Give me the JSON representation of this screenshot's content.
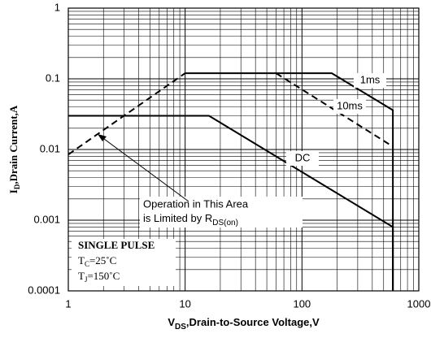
{
  "chart_data": {
    "type": "line",
    "xlabel": {
      "main": "V",
      "sub": "DS",
      "rest": ",Drain-to-Source Voltage,V"
    },
    "ylabel": {
      "main": "I",
      "sub": "D",
      "rest": ",Drain Current,A"
    },
    "xlog": true,
    "ylog": true,
    "grid": true,
    "minor_grid": true,
    "xlim": [
      1,
      1000
    ],
    "ylim": [
      0.0001,
      1
    ],
    "xticks": [
      1,
      10,
      100,
      1000
    ],
    "yticks": [
      0.0001,
      0.001,
      0.01,
      0.1,
      1
    ],
    "series": [
      {
        "color": "#000000",
        "dashed": true,
        "x": [
          1,
          10
        ],
        "values": [
          0.0085,
          0.12
        ]
      },
      {
        "name": "1ms",
        "color": "#000000",
        "dashed": false,
        "x": [
          10,
          180,
          600,
          600
        ],
        "values": [
          0.12,
          0.12,
          0.036,
          0.0001
        ]
      },
      {
        "name": "10ms",
        "color": "#000000",
        "dashed": true,
        "x": [
          60,
          600
        ],
        "values": [
          0.12,
          0.011
        ]
      },
      {
        "name": "DC",
        "color": "#000000",
        "dashed": false,
        "x": [
          1,
          16,
          600,
          600
        ],
        "values": [
          0.03,
          0.03,
          0.0008,
          0.0001
        ]
      }
    ],
    "annotation": {
      "line1": "Operation in This Area",
      "line2": "is Limited by R",
      "sub": "DS(on)"
    },
    "conditions": {
      "line1": "SINGLE  PULSE",
      "tc": {
        "main": "T",
        "sub": "C",
        "rest": "=25˚C"
      },
      "tj": {
        "main": "T",
        "sub": "J",
        "rest": "=150˚C"
      }
    }
  }
}
